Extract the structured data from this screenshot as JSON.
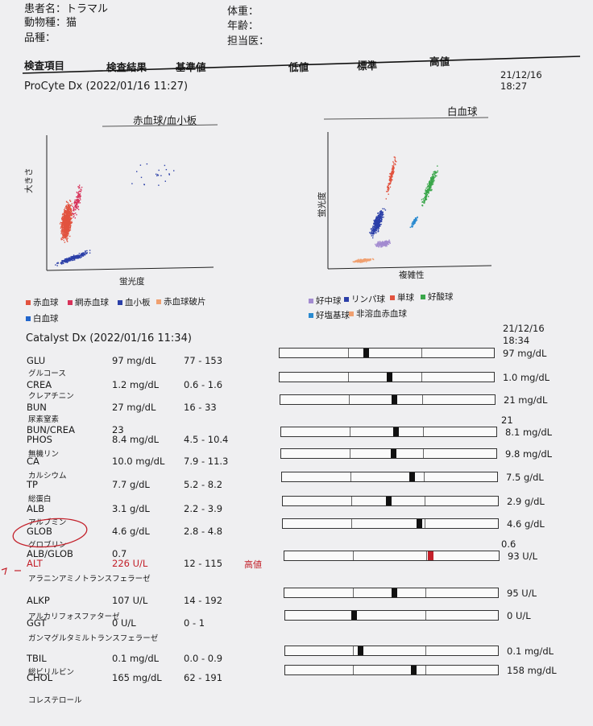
{
  "header": {
    "patient_label": "患者名：トラマル",
    "species_label": "動物種：猫",
    "breed_label": "品種：",
    "weight_label": "体重：",
    "age_label": "年齢：",
    "doctor_label": "担当医："
  },
  "columns": {
    "item": "検査項目",
    "result": "検査結果",
    "ref": "基準値",
    "low": "低値",
    "normal": "標準",
    "high": "高値"
  },
  "procyte": {
    "title": "ProCyte Dx (2022/01/16 11:27)",
    "date": "21/12/16",
    "time": "18:27",
    "rbc_chart": {
      "title": "赤血球/血小板",
      "xlabel": "蛍光度",
      "ylabel": "大きさ",
      "legend": [
        {
          "label": "赤血球",
          "color": "#e2533f"
        },
        {
          "label": "網赤血球",
          "color": "#d8325a"
        },
        {
          "label": "血小板",
          "color": "#2b3fa8"
        },
        {
          "label": "赤血球破片",
          "color": "#f0a070"
        },
        {
          "label": "白血球",
          "color": "#2266cc"
        }
      ]
    },
    "wbc_chart": {
      "title": "白血球",
      "xlabel": "複雑性",
      "ylabel": "蛍光度",
      "legend": [
        {
          "label": "好中球",
          "color": "#a38bd0"
        },
        {
          "label": "リンパ球",
          "color": "#2b3fa8"
        },
        {
          "label": "単球",
          "color": "#e2533f"
        },
        {
          "label": "好酸球",
          "color": "#3aa64a"
        },
        {
          "label": "好塩基球",
          "color": "#2a8ad0"
        },
        {
          "label": "非溶血赤血球",
          "color": "#f0a070"
        }
      ]
    }
  },
  "catalyst": {
    "title": "Catalyst Dx (2022/01/16 11:34)",
    "date": "21/12/16",
    "time": "18:34",
    "rows": [
      {
        "name": "GLU",
        "val": "97 mg/dL",
        "ref": "77 - 153",
        "right": "97 mg/dL",
        "pos": 0.12,
        "sub": "グルコース",
        "flag": "",
        "bar": true
      },
      {
        "name": "CREA",
        "val": "1.2 mg/dL",
        "ref": "0.6 - 1.6",
        "right": "1.0 mg/dL",
        "pos": 0.13,
        "sub": "クレアチニン",
        "flag": "",
        "bar": true
      },
      {
        "name": "BUN",
        "val": "27 mg/dL",
        "ref": "16 - 33",
        "right": "21 mg/dL",
        "pos": 0.15,
        "sub": "尿素窒素",
        "flag": "",
        "bar": true
      },
      {
        "name": "BUN/CREA",
        "val": "23",
        "ref": "",
        "right": "21",
        "pos": null,
        "sub": "",
        "flag": "",
        "bar": false
      },
      {
        "name": "PHOS",
        "val": "8.4 mg/dL",
        "ref": "4.5 - 10.4",
        "right": "8.1 mg/dL",
        "pos": 0.16,
        "sub": "無機リン",
        "flag": "",
        "bar": true
      },
      {
        "name": "CA",
        "val": "10.0 mg/dL",
        "ref": "7.9 - 11.3",
        "right": "9.8 mg/dL",
        "pos": 0.15,
        "sub": "カルシウム",
        "flag": "",
        "bar": true
      },
      {
        "name": "TP",
        "val": "7.7 g/dL",
        "ref": "5.2 - 8.2",
        "right": "7.5 g/dL",
        "pos": 0.18,
        "sub": "総蛋白",
        "flag": "",
        "bar": true
      },
      {
        "name": "ALB",
        "val": "3.1 g/dL",
        "ref": "2.2 - 3.9",
        "right": "2.9 g/dL",
        "pos": 0.12,
        "sub": "アルブミン",
        "flag": "",
        "bar": true
      },
      {
        "name": "GLOB",
        "val": "4.6 g/dL",
        "ref": "2.8 - 4.8",
        "right": "4.6 g/dL",
        "pos": 0.18,
        "sub": "グロブリン",
        "flag": "",
        "bar": true
      },
      {
        "name": "ALB/GLOB",
        "val": "0.7",
        "ref": "",
        "right": "0.6",
        "pos": null,
        "sub": "",
        "flag": "",
        "bar": false
      },
      {
        "name": "ALT",
        "val": "226 U/L",
        "ref": "12 - 115",
        "right": "93 U/L",
        "pos": 0.2,
        "sub": "アラニンアミノトランスフェラーゼ",
        "flag": "高値",
        "bar": true,
        "high": true
      },
      {
        "name": "ALKP",
        "val": "107 U/L",
        "ref": "14 - 192",
        "right": "95 U/L",
        "pos": 0.14,
        "sub": "アルカリフォスファターゼ",
        "flag": "",
        "bar": true
      },
      {
        "name": "GGT",
        "val": "0 U/L",
        "ref": "0 - 1",
        "right": "0 U/L",
        "pos": 0.03,
        "sub": "ガンマグルタミルトランスフェラーゼ",
        "flag": "",
        "bar": true
      },
      {
        "name": "TBIL",
        "val": "0.1 mg/dL",
        "ref": "0.0 - 0.9",
        "right": "0.1 mg/dL",
        "pos": 0.05,
        "sub": "総ビリルビン",
        "flag": "",
        "bar": true
      },
      {
        "name": "CHOL",
        "val": "165 mg/dL",
        "ref": "62 - 191",
        "right": "158 mg/dL",
        "pos": 0.16,
        "sub": "コレステロール",
        "flag": "",
        "bar": true
      }
    ]
  }
}
